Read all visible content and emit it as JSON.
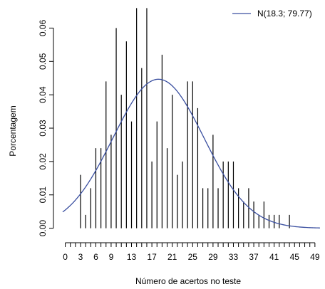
{
  "chart_data": {
    "type": "bar",
    "xlabel": "Número de acertos no teste",
    "ylabel": "Porcentagem",
    "xlim": [
      -0.5,
      50
    ],
    "ylim": [
      -0.002,
      0.065
    ],
    "x_ticks": [
      0,
      1,
      2,
      3,
      4,
      5,
      6,
      7,
      8,
      9,
      10,
      11,
      12,
      13,
      14,
      15,
      16,
      17,
      18,
      19,
      20,
      21,
      22,
      23,
      24,
      25,
      26,
      27,
      28,
      29,
      30,
      31,
      32,
      33,
      34,
      35,
      36,
      37,
      38,
      39,
      40,
      41,
      42,
      43,
      44,
      45,
      46,
      47,
      48,
      49
    ],
    "x_tick_labels": [
      "0",
      "3",
      "6",
      "9",
      "13",
      "17",
      "21",
      "25",
      "29",
      "33",
      "37",
      "41",
      "45",
      "49"
    ],
    "x_tick_label_positions": [
      0,
      3,
      6,
      9,
      13,
      17,
      21,
      25,
      29,
      33,
      37,
      41,
      45,
      49
    ],
    "y_ticks": [
      0.0,
      0.01,
      0.02,
      0.03,
      0.04,
      0.05,
      0.06
    ],
    "y_tick_labels": [
      "0.00",
      "0.01",
      "0.02",
      "0.03",
      "0.04",
      "0.05",
      "0.06"
    ],
    "bars": {
      "x": [
        3,
        4,
        5,
        6,
        7,
        8,
        9,
        10,
        11,
        12,
        13,
        14,
        15,
        16,
        17,
        18,
        19,
        20,
        21,
        22,
        23,
        24,
        25,
        26,
        27,
        28,
        29,
        30,
        31,
        32,
        33,
        34,
        35,
        36,
        37,
        38,
        39,
        40,
        41,
        42,
        43,
        44
      ],
      "values": [
        0.016,
        0.004,
        0.012,
        0.024,
        0.024,
        0.044,
        0.028,
        0.06,
        0.04,
        0.056,
        0.032,
        0.066,
        0.048,
        0.066,
        0.02,
        0.032,
        0.052,
        0.024,
        0.04,
        0.016,
        0.02,
        0.044,
        0.044,
        0.036,
        0.012,
        0.012,
        0.028,
        0.012,
        0.02,
        0.02,
        0.02,
        0.012,
        0.008,
        0.012,
        0.008,
        0.004,
        0.008,
        0.004,
        0.004,
        0.004,
        0.0,
        0.004
      ],
      "color": "#000000"
    },
    "series": [
      {
        "name": "N(18.3; 79.77)",
        "type": "line",
        "mean": 18.3,
        "variance": 79.77,
        "color": "#3a4fa0"
      }
    ],
    "legend": {
      "position": "top-right",
      "entries": [
        "N(18.3; 79.77)"
      ]
    }
  }
}
